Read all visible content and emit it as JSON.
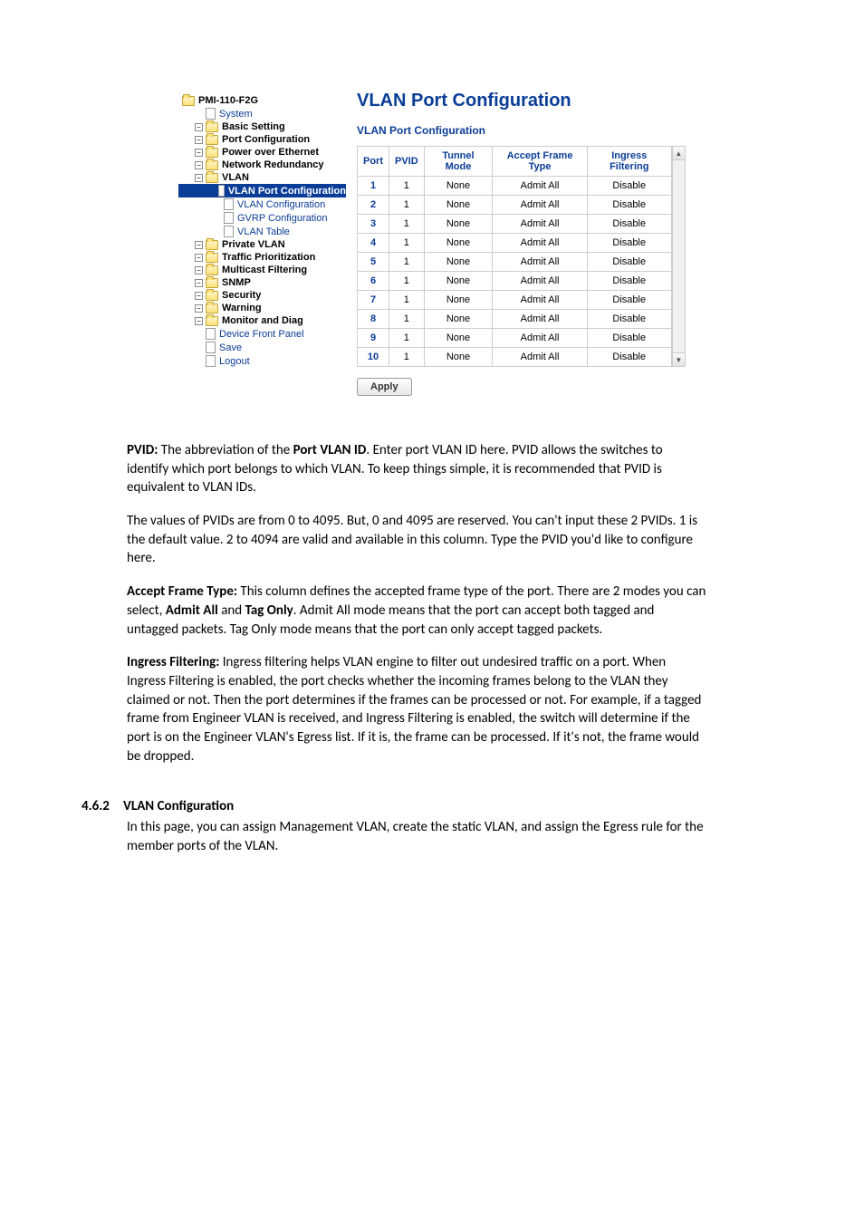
{
  "sidebar": {
    "root": "PMI-110-F2G",
    "items": [
      {
        "label": "System",
        "type": "doc",
        "indent": 1,
        "link": true
      },
      {
        "label": "Basic Setting",
        "type": "folder",
        "indent": 1,
        "toggle": "o-"
      },
      {
        "label": "Port Configuration",
        "type": "folder",
        "indent": 1,
        "toggle": "o-"
      },
      {
        "label": "Power over Ethernet",
        "type": "folder",
        "indent": 1,
        "toggle": "o-"
      },
      {
        "label": "Network Redundancy",
        "type": "folder",
        "indent": 1,
        "toggle": "o-"
      },
      {
        "label": "VLAN",
        "type": "folder",
        "indent": 1,
        "toggle": "o-",
        "expanded": true
      },
      {
        "label": "VLAN Port Configuration",
        "type": "doc",
        "indent": 2,
        "active": true
      },
      {
        "label": "VLAN Configuration",
        "type": "doc",
        "indent": 2,
        "link": true
      },
      {
        "label": "GVRP Configuration",
        "type": "doc",
        "indent": 2,
        "link": true
      },
      {
        "label": "VLAN Table",
        "type": "doc",
        "indent": 2,
        "link": true
      },
      {
        "label": "Private VLAN",
        "type": "folder",
        "indent": 1,
        "toggle": "o-"
      },
      {
        "label": "Traffic Prioritization",
        "type": "folder",
        "indent": 1,
        "toggle": "o-"
      },
      {
        "label": "Multicast Filtering",
        "type": "folder",
        "indent": 1,
        "toggle": "o-"
      },
      {
        "label": "SNMP",
        "type": "folder",
        "indent": 1,
        "toggle": "o-"
      },
      {
        "label": "Security",
        "type": "folder",
        "indent": 1,
        "toggle": "o-"
      },
      {
        "label": "Warning",
        "type": "folder",
        "indent": 1,
        "toggle": "o-"
      },
      {
        "label": "Monitor and Diag",
        "type": "folder",
        "indent": 1,
        "toggle": "o-"
      },
      {
        "label": "Device Front Panel",
        "type": "doc",
        "indent": 1,
        "link": true
      },
      {
        "label": "Save",
        "type": "doc",
        "indent": 1,
        "link": true
      },
      {
        "label": "Logout",
        "type": "doc",
        "indent": 1,
        "link": true
      }
    ]
  },
  "main": {
    "title": "VLAN Port Configuration",
    "subtitle": "VLAN Port Configuration",
    "headers": [
      "Port",
      "PVID",
      "Tunnel Mode",
      "Accept Frame Type",
      "Ingress Filtering"
    ],
    "rows": [
      {
        "port": "1",
        "pvid": "1",
        "tunnel": "None",
        "accept": "Admit All",
        "ingress": "Disable"
      },
      {
        "port": "2",
        "pvid": "1",
        "tunnel": "None",
        "accept": "Admit All",
        "ingress": "Disable"
      },
      {
        "port": "3",
        "pvid": "1",
        "tunnel": "None",
        "accept": "Admit All",
        "ingress": "Disable"
      },
      {
        "port": "4",
        "pvid": "1",
        "tunnel": "None",
        "accept": "Admit All",
        "ingress": "Disable"
      },
      {
        "port": "5",
        "pvid": "1",
        "tunnel": "None",
        "accept": "Admit All",
        "ingress": "Disable"
      },
      {
        "port": "6",
        "pvid": "1",
        "tunnel": "None",
        "accept": "Admit All",
        "ingress": "Disable"
      },
      {
        "port": "7",
        "pvid": "1",
        "tunnel": "None",
        "accept": "Admit All",
        "ingress": "Disable"
      },
      {
        "port": "8",
        "pvid": "1",
        "tunnel": "None",
        "accept": "Admit All",
        "ingress": "Disable"
      },
      {
        "port": "9",
        "pvid": "1",
        "tunnel": "None",
        "accept": "Admit All",
        "ingress": "Disable"
      },
      {
        "port": "10",
        "pvid": "1",
        "tunnel": "None",
        "accept": "Admit All",
        "ingress": "Disable"
      }
    ],
    "apply": "Apply"
  },
  "doc": {
    "p1a": "PVID:",
    "p1b": " The abbreviation of the ",
    "p1c": "Port VLAN ID",
    "p1d": ". Enter port VLAN ID here. PVID allows the switches to identify which port belongs to which VLAN. To keep things simple, it is recommended that PVID is equivalent to VLAN IDs.",
    "p2": "The values of PVIDs are from 0 to 4095. But, 0 and 4095 are reserved. You can't input these 2 PVIDs. 1 is the default value. 2 to 4094 are valid and available in this column. Type the PVID you'd like to configure here.",
    "p3a": "Accept Frame Type:",
    "p3b": " This column defines the accepted frame type of the port. There are 2 modes you can select, ",
    "p3c": "Admit All",
    "p3d": " and ",
    "p3e": "Tag Only",
    "p3f": ". Admit All mode means that the port can accept both tagged and untagged packets. Tag Only mode means that the port can only accept tagged packets.",
    "p4a": "Ingress Filtering:",
    "p4b": " Ingress filtering helps VLAN engine to filter out undesired traffic on a port. When Ingress Filtering is enabled, the port checks whether the incoming frames belong to the VLAN they claimed or not. Then the port determines if the frames can be processed or not. For example, if a tagged frame from Engineer VLAN is received, and Ingress Filtering is enabled, the switch will determine if the port is on the Engineer VLAN's Egress list. If it is, the frame can be processed. If it's not, the frame would be dropped.",
    "sec_num": "4.6.2",
    "sec_title": "VLAN Configuration",
    "p5": "In this page, you can assign Management VLAN, create the static VLAN, and assign the Egress rule for the member ports of the VLAN."
  }
}
